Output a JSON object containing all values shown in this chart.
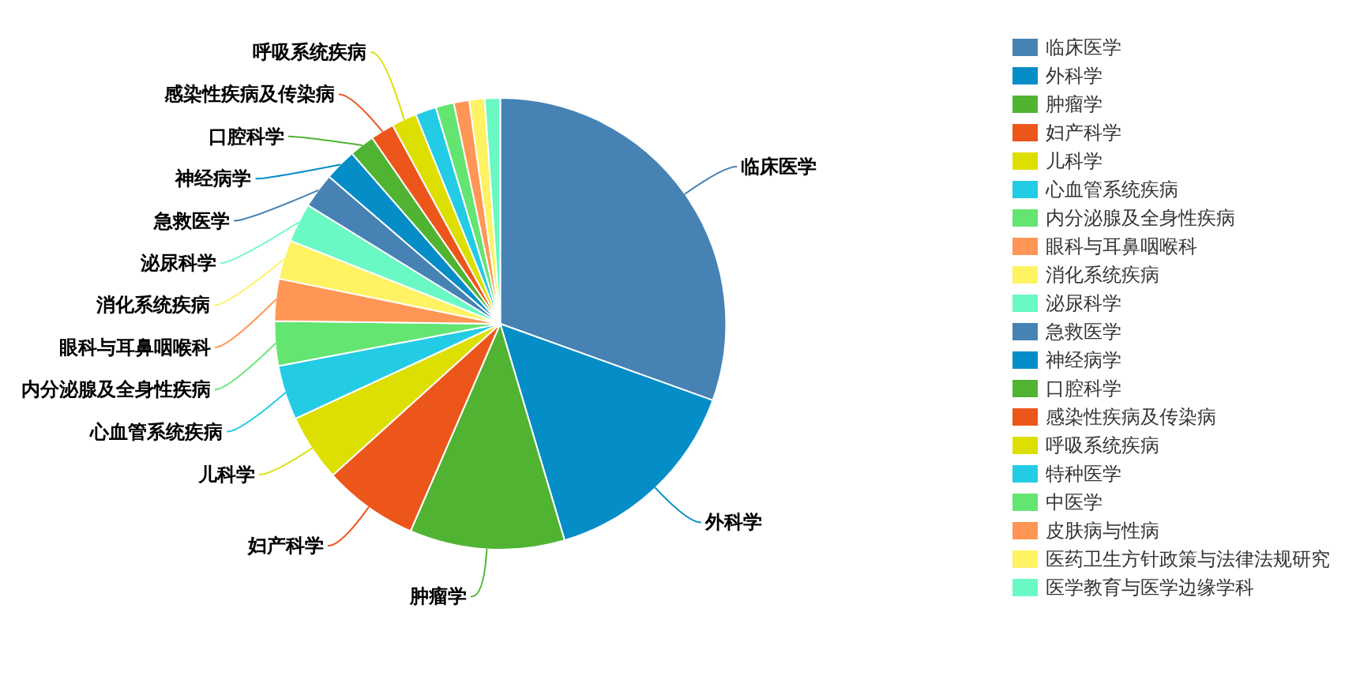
{
  "chart_data": {
    "type": "pie",
    "categories": [
      "临床医学",
      "外科学",
      "肿瘤学",
      "妇产科学",
      "儿科学",
      "心血管系统疾病",
      "内分泌腺及全身性疾病",
      "眼科与耳鼻咽喉科",
      "消化系统疾病",
      "泌尿科学",
      "急救医学",
      "神经病学",
      "口腔科学",
      "感染性疾病及传染病",
      "呼吸系统疾病",
      "特种医学",
      "中医学",
      "皮肤病与性病",
      "医药卫生方针政策与法律法规研究",
      "医学教育与医学边缘学科"
    ],
    "values": [
      30.5,
      14.9,
      11.1,
      6.8,
      4.8,
      3.9,
      3.2,
      3.0,
      2.8,
      2.8,
      2.5,
      2.3,
      1.8,
      1.7,
      1.8,
      1.5,
      1.3,
      1.1,
      1.1,
      1.1
    ],
    "colors": [
      "#4682b4",
      "#058dc7",
      "#50b432",
      "#ed561b",
      "#dddf00",
      "#24cbe5",
      "#64e572",
      "#ff9655",
      "#fff263",
      "#6af9c4",
      "#4682b4",
      "#058dc7",
      "#50b432",
      "#ed561b",
      "#dddf00",
      "#24cbe5",
      "#64e572",
      "#ff9655",
      "#fff263",
      "#6af9c4"
    ],
    "legend": "right"
  }
}
